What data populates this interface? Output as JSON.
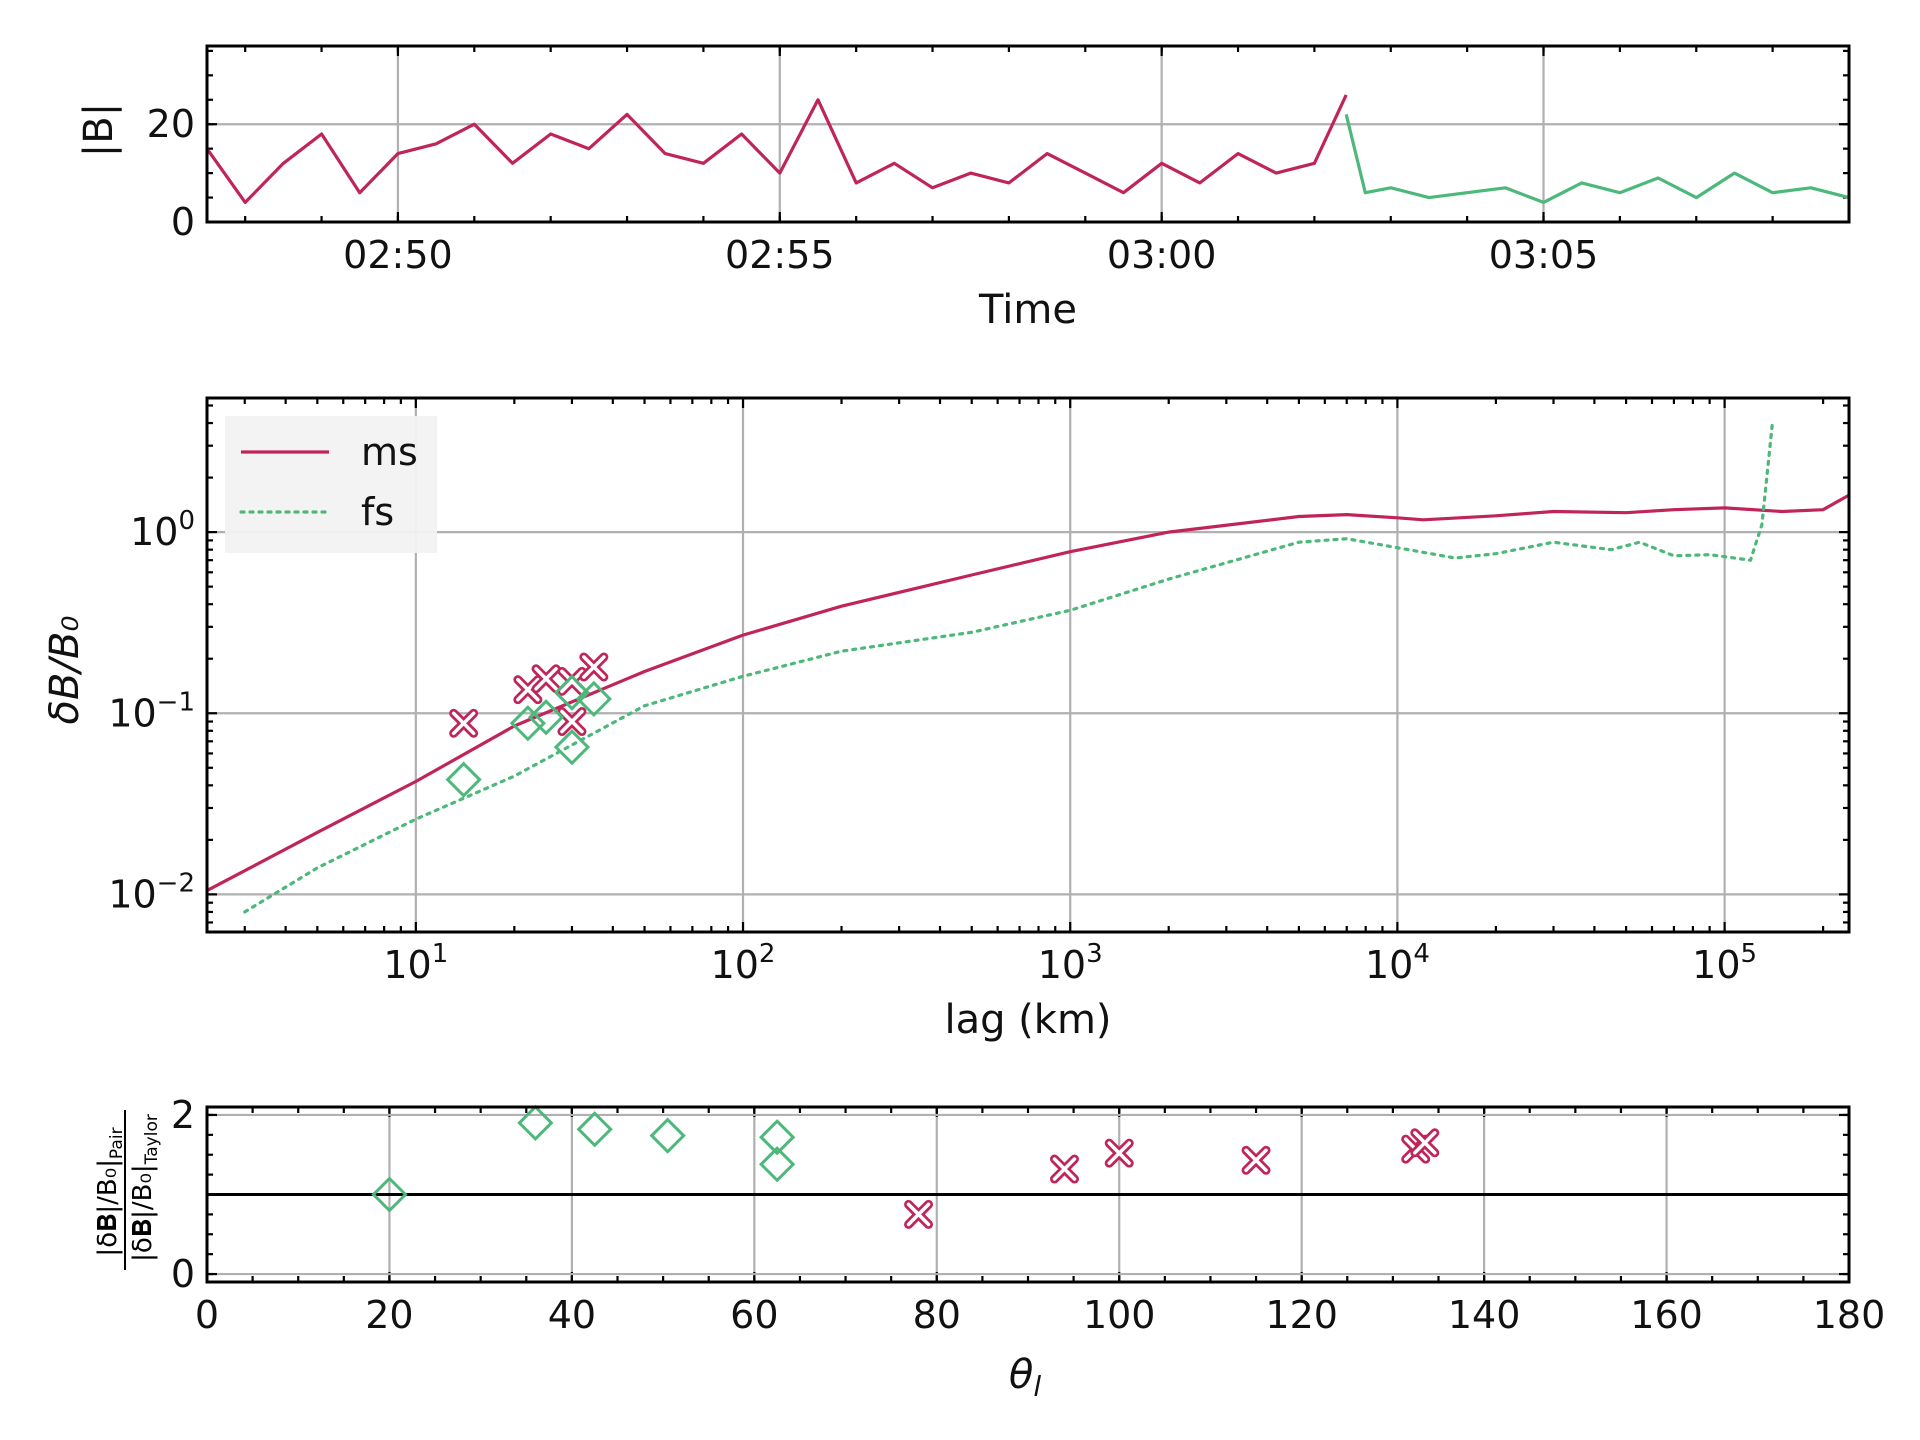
{
  "colors": {
    "ms": "#c0255a",
    "fs": "#4cb87a",
    "grid": "#b0b0b0",
    "ref_line": "#000000"
  },
  "chart_data": [
    {
      "type": "line",
      "ylabel": "|B|",
      "xlabel": "Time",
      "ylim": [
        0,
        36
      ],
      "yticks": [
        0,
        20
      ],
      "ytick_labels": [
        "0",
        "20"
      ],
      "xlim": [
        "02:47:30",
        "03:09:00"
      ],
      "xticks": [
        "02:50",
        "02:55",
        "03:00",
        "03:05"
      ],
      "grid": true,
      "series": [
        {
          "color_key": "ms",
          "x": [
            "02:47:30",
            "02:48:00",
            "02:48:30",
            "02:49:00",
            "02:49:30",
            "02:50:00",
            "02:50:30",
            "02:51:00",
            "02:51:30",
            "02:52:00",
            "02:52:30",
            "02:53:00",
            "02:53:30",
            "02:54:00",
            "02:54:30",
            "02:55:00",
            "02:55:30",
            "02:56:00",
            "02:56:30",
            "02:57:00",
            "02:57:30",
            "02:58:00",
            "02:58:30",
            "02:59:00",
            "02:59:30",
            "03:00:00",
            "03:00:30",
            "03:01:00",
            "03:01:30",
            "03:02:00",
            "03:02:25"
          ],
          "values": [
            15,
            4,
            12,
            18,
            6,
            14,
            16,
            20,
            12,
            18,
            15,
            22,
            14,
            12,
            18,
            10,
            25,
            8,
            12,
            7,
            10,
            8,
            14,
            10,
            6,
            12,
            8,
            14,
            10,
            12,
            26
          ]
        },
        {
          "color_key": "fs",
          "x": [
            "03:02:25",
            "03:02:40",
            "03:03:00",
            "03:03:30",
            "03:04:00",
            "03:04:30",
            "03:05:00",
            "03:05:30",
            "03:06:00",
            "03:06:30",
            "03:07:00",
            "03:07:30",
            "03:08:00",
            "03:08:30",
            "03:09:00"
          ],
          "values": [
            22,
            6,
            7,
            5,
            6,
            7,
            4,
            8,
            6,
            9,
            5,
            10,
            6,
            7,
            5
          ]
        }
      ]
    },
    {
      "type": "line",
      "xlabel": "lag (km)",
      "ylabel": "δB/B₀",
      "x_scale": "log",
      "y_scale": "log",
      "xlim": [
        2.3,
        240000
      ],
      "ylim": [
        0.0062,
        5.5
      ],
      "xticks": [
        10,
        100,
        1000,
        10000,
        100000
      ],
      "xtick_labels": [
        "10",
        "10",
        "10",
        "10",
        "10"
      ],
      "xtick_exponents": [
        "1",
        "2",
        "3",
        "4",
        "5"
      ],
      "yticks": [
        0.01,
        0.1,
        1
      ],
      "ytick_labels": [
        "10",
        "10",
        "10"
      ],
      "ytick_exponents": [
        "−2",
        "−1",
        "0"
      ],
      "grid": true,
      "legend": {
        "position": "top-left",
        "entries": [
          "ms",
          "fs"
        ]
      },
      "series": [
        {
          "name": "ms",
          "style": "solid",
          "x": [
            2.3,
            5,
            10,
            20,
            50,
            100,
            200,
            500,
            1000,
            2000,
            5000,
            7000,
            10000,
            12000,
            20000,
            30000,
            50000,
            70000,
            100000,
            150000,
            200000,
            240000
          ],
          "values": [
            0.0105,
            0.022,
            0.042,
            0.085,
            0.17,
            0.27,
            0.39,
            0.58,
            0.78,
            1.0,
            1.22,
            1.25,
            1.2,
            1.17,
            1.23,
            1.3,
            1.28,
            1.33,
            1.36,
            1.3,
            1.33,
            1.6
          ]
        },
        {
          "name": "fs",
          "style": "dotted",
          "x": [
            3,
            5,
            10,
            20,
            50,
            100,
            200,
            500,
            1000,
            2000,
            5000,
            7000,
            10000,
            15000,
            20000,
            30000,
            45000,
            55000,
            70000,
            90000,
            120000,
            130000,
            140000
          ],
          "values": [
            0.008,
            0.014,
            0.026,
            0.045,
            0.11,
            0.16,
            0.22,
            0.28,
            0.37,
            0.55,
            0.88,
            0.92,
            0.82,
            0.72,
            0.76,
            0.88,
            0.8,
            0.88,
            0.74,
            0.75,
            0.7,
            1.1,
            4.0
          ]
        }
      ],
      "scatter": [
        {
          "marker": "x",
          "color_key": "ms",
          "points": [
            [
              14,
              0.088
            ],
            [
              22,
              0.135
            ],
            [
              25,
              0.155
            ],
            [
              30,
              0.15
            ],
            [
              30,
              0.09
            ],
            [
              35,
              0.18
            ]
          ]
        },
        {
          "marker": "diamond",
          "color_key": "fs",
          "points": [
            [
              14,
              0.043
            ],
            [
              22,
              0.088
            ],
            [
              25,
              0.095
            ],
            [
              30,
              0.13
            ],
            [
              30,
              0.065
            ],
            [
              35,
              0.12
            ]
          ]
        }
      ]
    },
    {
      "type": "scatter",
      "xlabel": "θ",
      "xlabel_sub": "l",
      "ylabel_num": "|δ𝐁|/B₀|",
      "ylabel_num_sub": "Pair",
      "ylabel_den": "|δ𝐁|/B₀|",
      "ylabel_den_sub": "Taylor",
      "xlim": [
        0,
        180
      ],
      "ylim": [
        -0.1,
        2.1
      ],
      "xticks": [
        0,
        20,
        40,
        60,
        80,
        100,
        120,
        140,
        160,
        180
      ],
      "yticks": [
        0,
        2
      ],
      "reference_line": 1,
      "grid": true,
      "series": [
        {
          "marker": "diamond",
          "color_key": "fs",
          "x": [
            20,
            36,
            42.5,
            50.5,
            62.5,
            62.5
          ],
          "values": [
            1.0,
            1.9,
            1.82,
            1.74,
            1.72,
            1.38
          ]
        },
        {
          "marker": "x",
          "color_key": "ms",
          "x": [
            78,
            94,
            100,
            115,
            132.5,
            133.5
          ],
          "values": [
            0.75,
            1.32,
            1.52,
            1.43,
            1.57,
            1.65
          ]
        }
      ]
    }
  ]
}
